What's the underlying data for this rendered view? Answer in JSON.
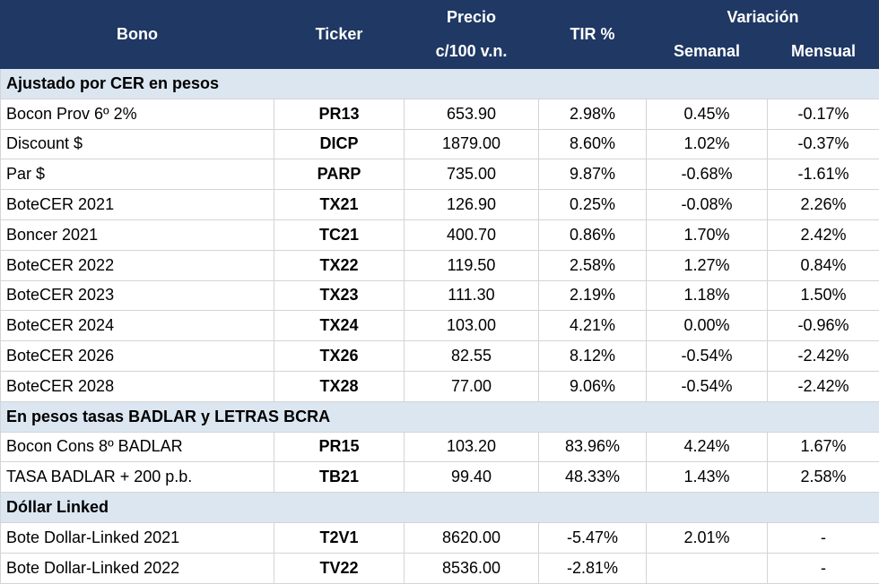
{
  "header": {
    "bono": "Bono",
    "ticker": "Ticker",
    "precio": "Precio",
    "precio_unit": "c/100 v.n.",
    "tir": "TIR %",
    "variacion": "Variación",
    "semanal": "Semanal",
    "mensual": "Mensual"
  },
  "sections": [
    {
      "title": "Ajustado por CER en pesos",
      "rows": [
        [
          "Bocon Prov 6º 2%",
          "PR13",
          "653.90",
          "2.98%",
          "0.45%",
          "-0.17%"
        ],
        [
          "Discount $",
          "DICP",
          "1879.00",
          "8.60%",
          "1.02%",
          "-0.37%"
        ],
        [
          "Par $",
          "PARP",
          "735.00",
          "9.87%",
          "-0.68%",
          "-1.61%"
        ],
        [
          "BoteCER 2021",
          "TX21",
          "126.90",
          "0.25%",
          "-0.08%",
          "2.26%"
        ],
        [
          "Boncer 2021",
          "TC21",
          "400.70",
          "0.86%",
          "1.70%",
          "2.42%"
        ],
        [
          "BoteCER 2022",
          "TX22",
          "119.50",
          "2.58%",
          "1.27%",
          "0.84%"
        ],
        [
          "BoteCER 2023",
          "TX23",
          "111.30",
          "2.19%",
          "1.18%",
          "1.50%"
        ],
        [
          "BoteCER 2024",
          "TX24",
          "103.00",
          "4.21%",
          "0.00%",
          "-0.96%"
        ],
        [
          "BoteCER 2026",
          "TX26",
          "82.55",
          "8.12%",
          "-0.54%",
          "-2.42%"
        ],
        [
          "BoteCER 2028",
          "TX28",
          "77.00",
          "9.06%",
          "-0.54%",
          "-2.42%"
        ]
      ]
    },
    {
      "title": "En pesos tasas BADLAR y LETRAS BCRA",
      "rows": [
        [
          "Bocon Cons 8º BADLAR",
          "PR15",
          "103.20",
          "83.96%",
          "4.24%",
          "1.67%"
        ],
        [
          "TASA BADLAR + 200 p.b.",
          "TB21",
          "99.40",
          "48.33%",
          "1.43%",
          "2.58%"
        ]
      ]
    },
    {
      "title": "Dóllar Linked",
      "rows": [
        [
          "Bote Dollar-Linked 2021",
          "T2V1",
          "8620.00",
          "-5.47%",
          "2.01%",
          "-"
        ],
        [
          "Bote Dollar-Linked 2022",
          "TV22",
          "8536.00",
          "-2.81%",
          null,
          "-"
        ]
      ]
    }
  ]
}
